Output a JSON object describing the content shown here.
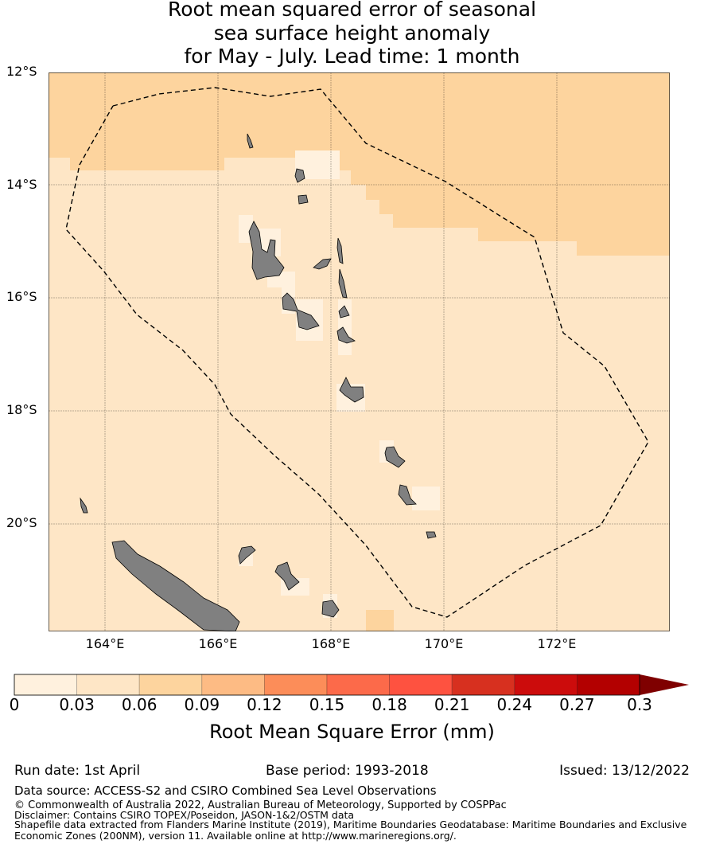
{
  "title": {
    "line1": "Root mean squared error of seasonal",
    "line2": "sea surface height anomaly",
    "line3": "for May - July. Lead time: 1 month"
  },
  "map": {
    "lat_labels": [
      "12°S",
      "14°S",
      "16°S",
      "18°S",
      "20°S"
    ],
    "lon_labels": [
      "164°E",
      "166°E",
      "168°E",
      "170°E",
      "172°E"
    ],
    "colors": {
      "bg": "#fee6c6",
      "upper": "#fdd49e",
      "low": "#fff1de",
      "land": "#808080"
    }
  },
  "colorbar": {
    "label": "Root Mean Square Error (mm)",
    "ticks": [
      "0",
      "0.03",
      "0.06",
      "0.09",
      "0.12",
      "0.15",
      "0.18",
      "0.21",
      "0.24",
      "0.27",
      "0.3"
    ],
    "colors": [
      "#fff1de",
      "#fee6c6",
      "#fdd49e",
      "#fdbb84",
      "#fc8d59",
      "#fc6a4a",
      "#fe5240",
      "#d7301f",
      "#cc0c0c",
      "#b30000"
    ],
    "extend_color": "#7f0000"
  },
  "footer": {
    "run_date": "Run date: 1st April",
    "base_period": "Base period: 1993-2018",
    "issued": "Issued: 13/12/2022",
    "data_source": "Data source: ACCESS-S2 and CSIRO Combined Sea Level Observations",
    "copyright": "© Commonwealth of Australia 2022, Australian Bureau of Meteorology, Supported by COSPPac",
    "disclaimer": "Disclaimer: Contains CSIRO TOPEX/Poseidon, JASON-1&2/OSTM data",
    "shapefile1": "Shapefile data extracted from Flanders Marine Institute (2019), Maritime Boundaries Geodatabase: Maritime Boundaries and Exclusive",
    "shapefile2": "Economic Zones (200NM), version 11. Available online at http://www.marineregions.org/."
  }
}
